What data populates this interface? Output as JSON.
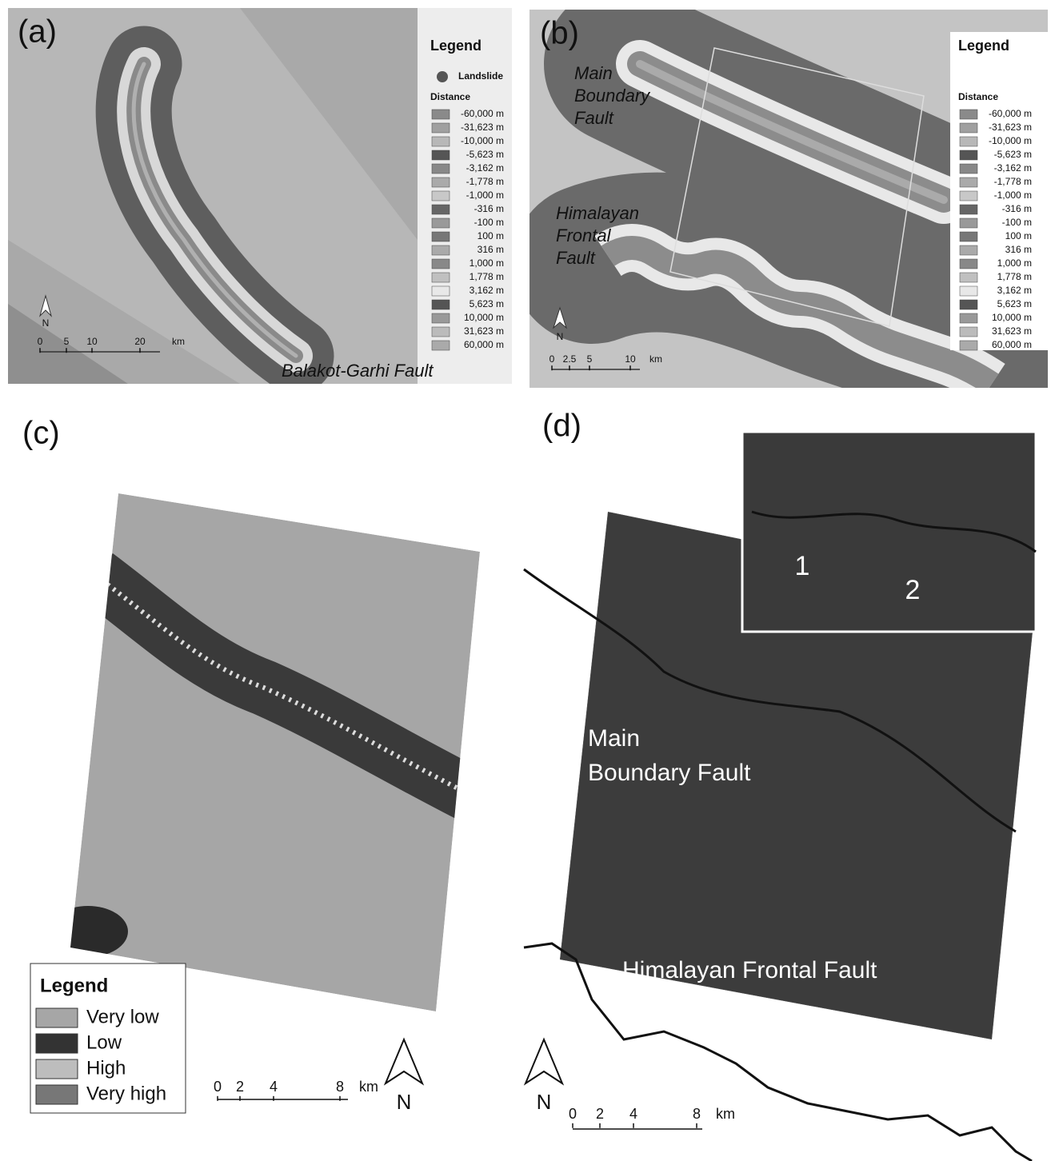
{
  "panel_a": {
    "label": "(a)",
    "legend_title": "Legend",
    "landslide": "Landslide",
    "distance_title": "Distance",
    "fault": "Balakot-Garhi Fault",
    "north": "N",
    "scale": [
      "0",
      "5",
      "10",
      "20",
      "km"
    ]
  },
  "panel_b": {
    "label": "(b)",
    "legend_title": "Legend",
    "distance_title": "Distance",
    "fault_1": [
      "Main",
      "Boundary",
      "Fault"
    ],
    "fault_2": [
      "Himalayan",
      "Frontal",
      "Fault"
    ],
    "north": "N",
    "scale": [
      "0",
      "2.5",
      "5",
      "10",
      "km"
    ]
  },
  "distance_classes": [
    {
      "label": "-60,000 m",
      "color": "#8a8a8a"
    },
    {
      "label": "-31,623 m",
      "color": "#a0a0a0"
    },
    {
      "label": "-10,000 m",
      "color": "#b8b8b8"
    },
    {
      "label": "-5,623 m",
      "color": "#555555"
    },
    {
      "label": "-3,162 m",
      "color": "#888888"
    },
    {
      "label": "-1,778 m",
      "color": "#aaaaaa"
    },
    {
      "label": "-1,000 m",
      "color": "#c8c8c8"
    },
    {
      "label": "-316 m",
      "color": "#666666"
    },
    {
      "label": "-100 m",
      "color": "#999999"
    },
    {
      "label": "100 m",
      "color": "#777777"
    },
    {
      "label": "316 m",
      "color": "#aaaaaa"
    },
    {
      "label": "1,000 m",
      "color": "#888888"
    },
    {
      "label": "1,778 m",
      "color": "#c0c0c0"
    },
    {
      "label": "3,162 m",
      "color": "#e8e8e8"
    },
    {
      "label": "5,623 m",
      "color": "#555555"
    },
    {
      "label": "10,000 m",
      "color": "#999999"
    },
    {
      "label": "31,623 m",
      "color": "#bbbbbb"
    },
    {
      "label": "60,000 m",
      "color": "#aaaaaa"
    }
  ],
  "panel_c": {
    "label": "(c)",
    "legend_title": "Legend",
    "north": "N",
    "scale": [
      "0",
      "2",
      "4",
      "8",
      "km"
    ],
    "classes": [
      {
        "label": "Very low",
        "color": "#a6a6a6"
      },
      {
        "label": "Low",
        "color": "#333333"
      },
      {
        "label": "High",
        "color": "#bdbdbd"
      },
      {
        "label": "Very high",
        "color": "#777777"
      }
    ]
  },
  "panel_d": {
    "label": "(d)",
    "fault_1": [
      "Main",
      "Boundary Fault"
    ],
    "fault_2": "Himalayan Frontal Fault",
    "inset_labels": [
      "1",
      "2"
    ],
    "north": "N",
    "scale": [
      "0",
      "2",
      "4",
      "8",
      "km"
    ]
  }
}
